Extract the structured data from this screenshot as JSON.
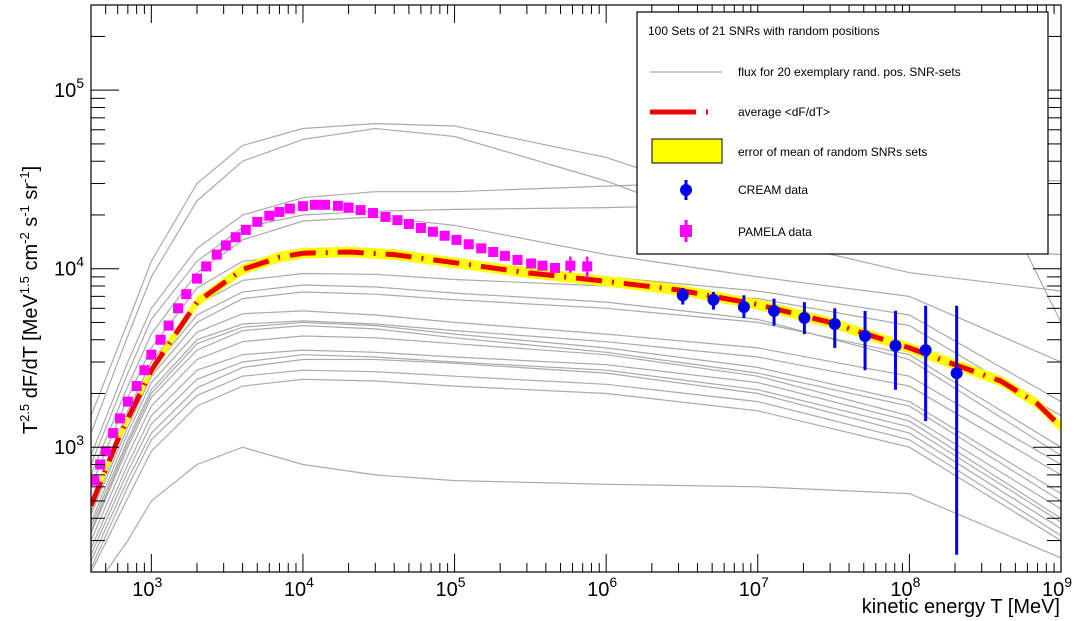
{
  "chart_data": {
    "type": "scatter",
    "xlabel": "kinetic energy T [MeV]",
    "ylabel_main": "T",
    "ylabel_sup": "2.5",
    "ylabel_mid": " dF/dT  [MeV",
    "ylabel_sup2": "1.5",
    "ylabel_mid2": " cm",
    "ylabel_sup3": "-2",
    "ylabel_mid3": " s",
    "ylabel_sup4": "-1",
    "ylabel_mid4": " sr",
    "ylabel_sup5": "-1",
    "ylabel_end": "]",
    "x_scale": "log",
    "y_scale": "log",
    "xlim": [
      400,
      1000000000
    ],
    "ylim": [
      200,
      300000
    ],
    "x_tick_labels": [
      {
        "base": "10",
        "exp": "3",
        "value": 1000
      },
      {
        "base": "10",
        "exp": "4",
        "value": 10000
      },
      {
        "base": "10",
        "exp": "5",
        "value": 100000
      },
      {
        "base": "10",
        "exp": "6",
        "value": 1000000
      },
      {
        "base": "10",
        "exp": "7",
        "value": 10000000
      },
      {
        "base": "10",
        "exp": "8",
        "value": 100000000
      },
      {
        "base": "10",
        "exp": "9",
        "value": 1000000000
      }
    ],
    "y_tick_labels": [
      {
        "base": "10",
        "exp": "3",
        "value": 1000
      },
      {
        "base": "10",
        "exp": "4",
        "value": 10000
      },
      {
        "base": "10",
        "exp": "5",
        "value": 100000
      }
    ],
    "legend": {
      "title": "100 Sets of 21 SNRs with random positions",
      "entries": [
        {
          "label": "flux for 20 exemplary rand. pos. SNR-sets",
          "style": "grey-line"
        },
        {
          "label": "average <dF/dT>",
          "style": "red-dash"
        },
        {
          "label": "error of mean of random SNRs sets",
          "style": "yellow-band"
        },
        {
          "label": "CREAM data",
          "style": "blue-circle"
        },
        {
          "label": "PAMELA data",
          "style": "magenta-square"
        }
      ],
      "placement": "top-right"
    },
    "colors": {
      "average": "#ee0000",
      "band": "#ffff00",
      "cream": "#0000ee",
      "pamela": "#ff00ff",
      "grey": "#aaaaaa"
    },
    "average_curve": {
      "x": [
        400,
        600,
        1000,
        2000,
        4000,
        7000,
        10000,
        20000,
        40000,
        100000,
        300000,
        1000000,
        3000000,
        10000000,
        30000000,
        100000000,
        200000000,
        400000000,
        700000000,
        1000000000
      ],
      "y": [
        470,
        1100,
        2700,
        6500,
        9900,
        11600,
        12200,
        12400,
        12000,
        10800,
        9500,
        8500,
        7600,
        6300,
        5000,
        3600,
        2900,
        2350,
        1750,
        1300
      ]
    },
    "pamela": {
      "x": [
        420,
        460,
        500,
        560,
        620,
        700,
        800,
        900,
        1000,
        1150,
        1300,
        1500,
        1700,
        2000,
        2300,
        2700,
        3100,
        3600,
        4200,
        5000,
        6000,
        7000,
        8200,
        10000,
        12000,
        14000,
        17000,
        20000,
        24000,
        29000,
        35000,
        42000,
        50000,
        60000,
        72000,
        86000,
        103000,
        124000,
        150000,
        180000,
        215000,
        260000,
        320000,
        380000,
        460000,
        580000,
        750000
      ],
      "y": [
        650,
        800,
        950,
        1200,
        1450,
        1800,
        2200,
        2700,
        3300,
        4000,
        4800,
        6000,
        7200,
        8800,
        10300,
        12000,
        13500,
        15000,
        16500,
        18300,
        19800,
        20800,
        21700,
        22400,
        22800,
        22800,
        22500,
        22000,
        21300,
        20500,
        19500,
        18700,
        17800,
        16900,
        16100,
        15300,
        14500,
        13700,
        13000,
        12400,
        11800,
        11200,
        10700,
        10400,
        10100,
        10400,
        10300
      ],
      "err_lo": [
        0,
        0,
        0,
        0,
        0,
        0,
        0,
        0,
        0,
        0,
        0,
        0,
        0,
        0,
        0,
        0,
        0,
        0,
        0,
        0,
        0,
        0,
        0,
        0,
        0,
        0,
        0,
        0,
        0,
        0,
        0,
        0,
        0,
        0,
        0,
        0,
        0,
        0,
        0,
        0,
        0,
        0,
        0,
        0,
        0,
        900,
        1400
      ],
      "err_hi": [
        0,
        0,
        0,
        0,
        0,
        0,
        0,
        0,
        0,
        0,
        0,
        0,
        0,
        0,
        0,
        0,
        0,
        0,
        0,
        0,
        0,
        0,
        0,
        0,
        0,
        0,
        0,
        0,
        0,
        0,
        0,
        0,
        0,
        0,
        0,
        0,
        0,
        0,
        0,
        0,
        0,
        0,
        0,
        0,
        0,
        1300,
        1400
      ]
    },
    "cream": {
      "x": [
        3200000,
        5100000,
        8100000,
        12800000,
        20300000,
        32200000,
        51000000,
        81000000,
        128000000,
        205000000
      ],
      "y": [
        7100,
        6700,
        6100,
        5800,
        5300,
        4900,
        4200,
        3700,
        3500,
        2600
      ],
      "y_lo": [
        6300,
        5900,
        5300,
        4800,
        4300,
        3600,
        2700,
        2100,
        1400,
        250
      ],
      "y_hi": [
        7800,
        7400,
        7100,
        6800,
        6500,
        6000,
        5800,
        5800,
        6200,
        6200
      ]
    },
    "grey_curves": [
      {
        "x": [
          400,
          700,
          1000,
          2000,
          4000,
          10000,
          30000,
          100000,
          1000000,
          10000000,
          100000000,
          1000000000
        ],
        "y": [
          1500,
          5000,
          11000,
          30000,
          49000,
          61000,
          65000,
          63000,
          42000,
          22000,
          14000,
          12000
        ]
      },
      {
        "x": [
          400,
          700,
          1000,
          2000,
          4000,
          10000,
          30000,
          100000,
          1000000,
          10000000,
          100000000,
          1000000000
        ],
        "y": [
          1200,
          4200,
          9000,
          24000,
          40000,
          53000,
          61000,
          55000,
          31000,
          15000,
          9500,
          7500
        ]
      },
      {
        "x": [
          400,
          700,
          1000,
          2000,
          4000,
          10000,
          30000,
          100000,
          1000000,
          10000000,
          100000000,
          1000000000
        ],
        "y": [
          900,
          3000,
          6000,
          13000,
          20000,
          25000,
          27000,
          27000,
          29000,
          31000,
          33000,
          31000
        ]
      },
      {
        "x": [
          400,
          700,
          1000,
          2000,
          4000,
          10000,
          30000,
          100000,
          1000000,
          10000000,
          100000000,
          400000000,
          1000000000
        ],
        "y": [
          800,
          2600,
          5200,
          11000,
          17000,
          20000,
          21000,
          21500,
          22000,
          23000,
          25000,
          24000,
          5000
        ]
      },
      {
        "x": [
          400,
          700,
          1000,
          2000,
          4000,
          10000,
          30000,
          100000,
          1000000,
          10000000,
          100000000,
          1000000000
        ],
        "y": [
          700,
          2200,
          4300,
          9500,
          14500,
          18500,
          19500,
          17500,
          12000,
          9000,
          7000,
          3000
        ]
      },
      {
        "x": [
          400,
          700,
          1000,
          2000,
          4000,
          10000,
          30000,
          100000,
          1000000,
          10000000,
          100000000,
          1000000000
        ],
        "y": [
          600,
          1900,
          3600,
          7800,
          11000,
          12000,
          11800,
          10800,
          9000,
          7500,
          5500,
          1800
        ]
      },
      {
        "x": [
          400,
          700,
          1000,
          2000,
          4000,
          10000,
          30000,
          100000,
          1000000,
          10000000,
          100000000,
          1000000000
        ],
        "y": [
          500,
          1600,
          3000,
          6300,
          8600,
          9400,
          9300,
          8700,
          8000,
          6800,
          4800,
          1500
        ]
      },
      {
        "x": [
          400,
          700,
          1000,
          2000,
          4000,
          10000,
          30000,
          100000,
          1000000,
          10000000,
          100000000,
          1000000000
        ],
        "y": [
          420,
          1300,
          2500,
          5000,
          6800,
          7400,
          7200,
          6700,
          6000,
          5000,
          3300,
          1000
        ]
      },
      {
        "x": [
          400,
          700,
          1000,
          2000,
          4000,
          10000,
          30000,
          100000,
          1000000,
          10000000,
          100000000,
          1000000000
        ],
        "y": [
          380,
          1200,
          2300,
          4400,
          5600,
          5800,
          5500,
          5000,
          4300,
          3600,
          2500,
          800
        ]
      },
      {
        "x": [
          400,
          700,
          1000,
          2000,
          4000,
          10000,
          30000,
          100000,
          1000000,
          10000000,
          100000000,
          1000000000
        ],
        "y": [
          360,
          1100,
          2100,
          4000,
          4900,
          5100,
          4900,
          4500,
          3900,
          3200,
          2200,
          700
        ]
      },
      {
        "x": [
          400,
          700,
          1000,
          2000,
          4000,
          10000,
          30000,
          100000,
          1000000,
          10000000,
          100000000,
          1000000000
        ],
        "y": [
          330,
          1000,
          1900,
          3500,
          4500,
          4800,
          4600,
          4100,
          3400,
          2600,
          1700,
          500
        ]
      },
      {
        "x": [
          400,
          700,
          1000,
          2000,
          4000,
          10000,
          30000,
          100000,
          1000000,
          10000000,
          100000000,
          1000000000
        ],
        "y": [
          300,
          900,
          1700,
          3100,
          3900,
          4200,
          4100,
          3800,
          3300,
          2500,
          1500,
          450
        ]
      },
      {
        "x": [
          400,
          700,
          1000,
          2000,
          4000,
          10000,
          30000,
          100000,
          1000000,
          10000000,
          100000000,
          1000000000
        ],
        "y": [
          270,
          800,
          1500,
          2700,
          3300,
          3500,
          3400,
          3200,
          2900,
          2300,
          1400,
          400
        ]
      },
      {
        "x": [
          400,
          700,
          1000,
          2000,
          4000,
          10000,
          30000,
          100000,
          1000000,
          10000000,
          100000000,
          1000000000
        ],
        "y": [
          250,
          730,
          1350,
          2400,
          3000,
          3300,
          3200,
          3000,
          2700,
          2100,
          1300,
          380
        ]
      },
      {
        "x": [
          400,
          700,
          1000,
          2000,
          4000,
          10000,
          30000,
          100000,
          1000000,
          10000000,
          100000000,
          1000000000
        ],
        "y": [
          230,
          660,
          1200,
          2150,
          2800,
          3100,
          3100,
          2950,
          2600,
          2000,
          1200,
          350
        ]
      },
      {
        "x": [
          400,
          700,
          1000,
          2000,
          4000,
          10000,
          30000,
          100000,
          1000000,
          10000000,
          100000000,
          1000000000
        ],
        "y": [
          210,
          600,
          1100,
          1950,
          2500,
          2700,
          2650,
          2500,
          2250,
          1800,
          1100,
          320
        ]
      },
      {
        "x": [
          400,
          700,
          1000,
          2000,
          4000,
          10000,
          30000,
          100000,
          1000000,
          10000000,
          100000000,
          1000000000
        ],
        "y": [
          200,
          520,
          950,
          1700,
          2200,
          2400,
          2350,
          2200,
          2000,
          1600,
          1000,
          300
        ]
      },
      {
        "x": [
          500,
          700,
          1000,
          2000,
          4000,
          10000,
          30000,
          100000,
          1000000,
          10000000,
          100000000,
          1000000000
        ],
        "y": [
          200,
          300,
          500,
          800,
          1000,
          800,
          700,
          650,
          620,
          600,
          550,
          240
        ]
      },
      {
        "x": [
          400,
          700,
          1000,
          2000,
          4000,
          10000,
          30000,
          100000,
          1000000,
          10000000,
          100000000,
          1000000000
        ],
        "y": [
          340,
          1050,
          2000,
          3800,
          4700,
          5000,
          4800,
          4300,
          3600,
          2800,
          1800,
          550
        ]
      },
      {
        "x": [
          400,
          700,
          1000,
          2000,
          4000,
          10000,
          30000,
          100000,
          1000000,
          10000000,
          100000000,
          1000000000
        ],
        "y": [
          440,
          1400,
          2700,
          5500,
          7400,
          8100,
          7900,
          7300,
          6500,
          5200,
          3100,
          900
        ]
      }
    ]
  }
}
